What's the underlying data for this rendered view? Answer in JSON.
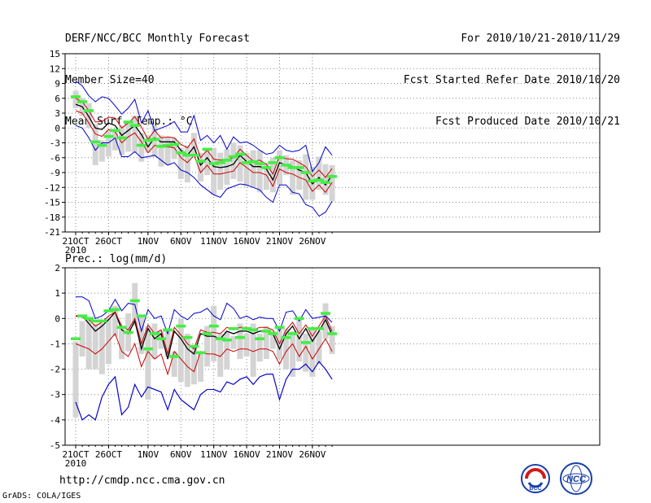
{
  "header": {
    "title": "DERF/NCC/BCC Monthly Forecast",
    "member_size": "Member Size=40",
    "variable": "Mean Surf. Temp.: °C",
    "period": "For 2010/10/21-2010/11/29",
    "started": "Fcst Started Refer Date 2010/10/20",
    "produced": "Fcst Produced Date 2010/10/21"
  },
  "footer": {
    "url": "http://cmdp.ncc.cma.gov.cn",
    "credit": "GrADS: COLA/IGES",
    "logo_left_text": "BCC",
    "logo_right_text": "NCC"
  },
  "colors": {
    "mean": "#000000",
    "spread": "#cc0000",
    "extreme": "#0000cc",
    "box": "#d4d4d4",
    "climatology": "#44ee44",
    "grid": "#888888"
  },
  "chart_data": [
    {
      "type": "line",
      "title": "Mean Surf. Temp.: °C",
      "ylim": [
        -21,
        15
      ],
      "yticks": [
        15,
        12,
        9,
        6,
        3,
        0,
        -3,
        -6,
        -9,
        -12,
        -15,
        -18,
        -21
      ],
      "xtick_labels": [
        "21OCT",
        "26OCT",
        "1NOV",
        "6NOV",
        "11NOV",
        "16NOV",
        "21NOV",
        "26NOV"
      ],
      "xtick_days": [
        1,
        6,
        12,
        17,
        22,
        27,
        32,
        37
      ],
      "year_label": "2010",
      "series": [
        {
          "name": "ensemble mean",
          "role": "mean",
          "values": [
            4.8,
            4.3,
            2.3,
            0.0,
            -0.3,
            1.0,
            0.5,
            -1.5,
            -0.5,
            0.5,
            -1.3,
            -3.8,
            -2.0,
            -2.8,
            -2.8,
            -2.8,
            -4.5,
            -5.5,
            -3.8,
            -7.5,
            -6.0,
            -7.8,
            -8.0,
            -7.8,
            -7.3,
            -5.5,
            -6.8,
            -7.8,
            -7.8,
            -8.3,
            -10.5,
            -7.0,
            -7.5,
            -7.8,
            -8.5,
            -9.0,
            -11.3,
            -10.0,
            -11.5,
            -9.5
          ]
        },
        {
          "name": "mean + sd",
          "role": "spread",
          "values": [
            6.0,
            5.3,
            3.5,
            1.2,
            1.3,
            2.2,
            2.0,
            0.0,
            1.0,
            2.3,
            0.2,
            -2.3,
            -0.5,
            -2.0,
            -1.8,
            -2.0,
            -3.3,
            -4.0,
            -2.2,
            -6.0,
            -4.5,
            -6.3,
            -6.5,
            -6.5,
            -6.0,
            -4.3,
            -5.5,
            -6.7,
            -6.5,
            -7.3,
            -9.3,
            -5.7,
            -6.2,
            -6.3,
            -7.0,
            -7.8,
            -9.8,
            -8.5,
            -10.0,
            -8.2
          ]
        },
        {
          "name": "mean - sd",
          "role": "spread",
          "values": [
            3.5,
            3.0,
            1.0,
            -1.2,
            -1.7,
            -0.3,
            -0.8,
            -3.0,
            -1.8,
            -1.0,
            -2.8,
            -5.0,
            -3.5,
            -3.8,
            -3.8,
            -4.0,
            -6.0,
            -7.0,
            -5.5,
            -9.0,
            -7.5,
            -9.3,
            -9.3,
            -9.0,
            -8.7,
            -7.0,
            -8.0,
            -9.0,
            -9.0,
            -9.5,
            -11.8,
            -8.3,
            -9.0,
            -9.3,
            -10.0,
            -10.5,
            -12.8,
            -11.5,
            -13.0,
            -11.0
          ]
        },
        {
          "name": "maximum",
          "role": "extreme",
          "values": [
            9.5,
            8.5,
            6.5,
            5.3,
            6.3,
            6.0,
            4.5,
            2.8,
            4.0,
            5.8,
            1.0,
            3.5,
            -0.5,
            0.0,
            0.5,
            1.3,
            -0.8,
            -0.8,
            2.5,
            -2.5,
            -1.5,
            -3.0,
            -1.5,
            -4.3,
            -1.8,
            -3.0,
            -2.8,
            -3.5,
            -4.5,
            -5.3,
            -5.0,
            -3.5,
            -4.5,
            -4.8,
            -4.5,
            -3.5,
            -8.8,
            -7.0,
            -3.8,
            -5.5
          ]
        },
        {
          "name": "minimum",
          "role": "extreme",
          "values": [
            0.5,
            0.0,
            -2.0,
            -4.5,
            -3.0,
            -3.0,
            -2.0,
            -5.8,
            -5.8,
            -4.8,
            -6.0,
            -5.8,
            -5.5,
            -6.5,
            -7.5,
            -7.0,
            -8.5,
            -9.0,
            -10.0,
            -11.5,
            -12.5,
            -13.5,
            -14.0,
            -12.3,
            -11.8,
            -11.3,
            -11.5,
            -12.0,
            -12.5,
            -14.0,
            -15.0,
            -11.5,
            -11.5,
            -13.0,
            -13.3,
            -15.5,
            -16.0,
            -17.8,
            -17.0,
            -14.8
          ]
        }
      ],
      "boxes": [
        [
          7.5,
          4.0
        ],
        [
          6.0,
          2.5
        ],
        [
          5.0,
          0.0
        ],
        [
          0.8,
          -7.5
        ],
        [
          -2.5,
          -6.8
        ],
        [
          -0.5,
          -5.8
        ],
        [
          -0.5,
          -4.5
        ],
        [
          0.5,
          -5.5
        ],
        [
          1.0,
          -4.8
        ],
        [
          2.5,
          -5.0
        ],
        [
          -1.0,
          -6.8
        ],
        [
          -1.5,
          -5.0
        ],
        [
          0.5,
          -5.8
        ],
        [
          -1.5,
          -7.8
        ],
        [
          -1.8,
          -7.5
        ],
        [
          -2.0,
          -6.3
        ],
        [
          -4.0,
          -10.3
        ],
        [
          -3.5,
          -11.0
        ],
        [
          -1.0,
          -5.8
        ],
        [
          -5.0,
          -10.8
        ],
        [
          -4.0,
          -9.5
        ],
        [
          -4.0,
          -13.5
        ],
        [
          -5.0,
          -12.5
        ],
        [
          -4.3,
          -11.5
        ],
        [
          -3.0,
          -10.3
        ],
        [
          -3.5,
          -10.8
        ],
        [
          -5.0,
          -11.8
        ],
        [
          -4.5,
          -12.0
        ],
        [
          -4.5,
          -13.0
        ],
        [
          -7.0,
          -12.5
        ],
        [
          -6.0,
          -13.0
        ],
        [
          -4.5,
          -11.5
        ],
        [
          -5.5,
          -9.5
        ],
        [
          -6.5,
          -13.5
        ],
        [
          -6.5,
          -12.5
        ],
        [
          -5.3,
          -14.5
        ],
        [
          -7.8,
          -14.5
        ],
        [
          -5.8,
          -12.5
        ],
        [
          -7.3,
          -13.5
        ],
        [
          -7.5,
          -14.8
        ]
      ],
      "climatology": [
        6.3,
        5.3,
        3.5,
        -2.8,
        -3.5,
        -1.7,
        -0.5,
        -2.0,
        1.2,
        0.5,
        -3.5,
        -2.5,
        -2.3,
        -3.7,
        -3.5,
        -3.3,
        -5.0,
        -5.5,
        -5.5,
        -6.7,
        -4.3,
        -7.2,
        -7.0,
        -6.5,
        -5.8,
        -5.3,
        -7.0,
        -6.8,
        -7.2,
        -8.0,
        -7.0,
        -6.0,
        -7.5,
        -8.0,
        -8.0,
        -9.0,
        -10.7,
        -10.5,
        -11.0,
        -9.8
      ]
    },
    {
      "type": "line",
      "title": "Prec.: log(mm/d)",
      "ylim": [
        -5,
        2
      ],
      "yticks": [
        2,
        1,
        0,
        -1,
        -2,
        -3,
        -4,
        -5
      ],
      "xtick_labels": [
        "21OCT",
        "26OCT",
        "1NOV",
        "6NOV",
        "11NOV",
        "16NOV",
        "21NOV",
        "26NOV"
      ],
      "xtick_days": [
        1,
        6,
        12,
        17,
        22,
        27,
        32,
        37
      ],
      "year_label": "2010",
      "series": [
        {
          "name": "ensemble mean",
          "role": "mean",
          "values": [
            0.1,
            0.1,
            -0.2,
            -0.5,
            -0.3,
            -0.05,
            0.25,
            -0.45,
            -0.6,
            -0.1,
            -1.2,
            -0.4,
            -0.8,
            -0.6,
            -1.6,
            -0.5,
            -0.8,
            -1.2,
            -1.4,
            -0.6,
            -0.7,
            -0.7,
            -0.8,
            -0.5,
            -0.6,
            -0.5,
            -0.5,
            -0.6,
            -0.5,
            -0.5,
            -0.6,
            -1.2,
            -0.6,
            -0.3,
            -0.8,
            -0.4,
            -0.9,
            -0.5,
            -0.05,
            -0.65
          ]
        },
        {
          "name": "mean + sd",
          "role": "spread",
          "values": [
            0.1,
            0.05,
            -0.05,
            -0.3,
            -0.15,
            0.1,
            0.25,
            -0.3,
            -0.45,
            0.0,
            -1.0,
            -0.25,
            -0.6,
            -0.45,
            -1.4,
            -0.35,
            -0.65,
            -1.0,
            -1.2,
            -0.45,
            -0.55,
            -0.55,
            -0.6,
            -0.35,
            -0.45,
            -0.35,
            -0.35,
            -0.45,
            -0.35,
            -0.35,
            -0.45,
            -1.0,
            -0.45,
            -0.15,
            -0.6,
            -0.25,
            -0.7,
            -0.3,
            0.1,
            -0.5
          ]
        },
        {
          "name": "mean - sd",
          "role": "spread",
          "values": [
            -1.0,
            -1.1,
            -1.2,
            -1.4,
            -1.2,
            -0.9,
            -0.6,
            -1.3,
            -1.5,
            -1.0,
            -1.9,
            -1.3,
            -1.6,
            -1.4,
            -2.2,
            -1.3,
            -1.6,
            -1.9,
            -2.1,
            -1.3,
            -1.4,
            -1.4,
            -1.5,
            -1.2,
            -1.3,
            -1.2,
            -1.2,
            -1.3,
            -1.2,
            -1.2,
            -1.3,
            -1.8,
            -1.3,
            -1.0,
            -1.5,
            -1.1,
            -1.6,
            -1.2,
            -0.8,
            -1.3
          ]
        },
        {
          "name": "maximum",
          "role": "extreme",
          "values": [
            0.85,
            0.85,
            0.7,
            0.0,
            0.1,
            0.3,
            0.75,
            0.3,
            0.6,
            0.55,
            -0.5,
            0.35,
            0.0,
            0.1,
            -0.6,
            0.35,
            0.1,
            -0.05,
            0.2,
            0.25,
            0.4,
            0.1,
            -0.05,
            0.6,
            0.4,
            0.0,
            0.1,
            -0.05,
            0.05,
            0.0,
            0.0,
            -0.5,
            0.25,
            0.3,
            -0.1,
            0.35,
            0.0,
            0.05,
            0.1,
            -0.15
          ]
        },
        {
          "name": "minimum",
          "role": "extreme",
          "values": [
            -3.3,
            -4.0,
            -3.8,
            -4.0,
            -3.1,
            -2.6,
            -2.3,
            -3.8,
            -3.5,
            -2.6,
            -3.1,
            -2.7,
            -2.8,
            -2.9,
            -3.6,
            -2.8,
            -3.2,
            -3.4,
            -3.6,
            -3.0,
            -2.8,
            -2.8,
            -2.9,
            -2.5,
            -2.6,
            -2.4,
            -2.3,
            -2.6,
            -2.3,
            -2.2,
            -2.2,
            -3.2,
            -2.4,
            -2.0,
            -2.0,
            -1.8,
            -2.1,
            -1.7,
            -2.0,
            -2.4
          ]
        },
        {
          "name": "minimum (lower member)",
          "role": "extreme",
          "values": [
            -3.3,
            -4.0,
            -3.8,
            -4.0,
            -3.1,
            -2.6,
            -2.3,
            -3.8,
            -3.5,
            -2.6,
            -3.1,
            -2.7,
            -2.8,
            -2.9,
            -3.6,
            -2.8,
            -3.2,
            -3.4,
            -3.6,
            -3.0,
            -2.8,
            -2.8,
            -2.9,
            -2.5,
            -2.6,
            -2.4,
            -2.3,
            -2.6,
            -2.3,
            -2.2,
            -2.2,
            -3.2,
            -2.4,
            -2.0,
            -2.0,
            -1.8,
            -2.1,
            -1.7,
            -2.0,
            -2.4
          ]
        }
      ],
      "boxes": [
        [
          -0.9,
          -3.9
        ],
        [
          -0.1,
          -1.5
        ],
        [
          0.0,
          -2.0
        ],
        [
          -0.2,
          -2.0
        ],
        [
          -0.2,
          -2.2
        ],
        [
          0.0,
          -1.8
        ],
        [
          0.5,
          -0.7
        ],
        [
          -0.4,
          -1.6
        ],
        [
          0.2,
          -1.3
        ],
        [
          1.4,
          -0.3
        ],
        [
          0.1,
          -1.4
        ],
        [
          -0.3,
          -3.2
        ],
        [
          -0.2,
          -1.6
        ],
        [
          -0.5,
          -1.2
        ],
        [
          -0.5,
          -1.5
        ],
        [
          -1.3,
          -2.3
        ],
        [
          0.0,
          -2.5
        ],
        [
          -0.6,
          -2.7
        ],
        [
          -1.1,
          -2.6
        ],
        [
          -1.3,
          -2.5
        ],
        [
          -0.3,
          -1.9
        ],
        [
          0.5,
          -1.7
        ],
        [
          -0.6,
          -2.3
        ],
        [
          -0.5,
          -2.0
        ],
        [
          -0.7,
          -1.2
        ],
        [
          -0.2,
          -1.6
        ],
        [
          -0.6,
          -1.5
        ],
        [
          -0.2,
          -2.3
        ],
        [
          -0.6,
          -1.7
        ],
        [
          -0.3,
          -1.6
        ],
        [
          -0.5,
          -1.2
        ],
        [
          -0.4,
          -1.6
        ],
        [
          -0.4,
          -2.0
        ],
        [
          -0.5,
          -2.3
        ],
        [
          0.0,
          -1.7
        ],
        [
          -0.6,
          -2.1
        ],
        [
          -0.4,
          -2.3
        ],
        [
          -0.5,
          -1.8
        ],
        [
          0.6,
          -0.8
        ],
        [
          -0.3,
          -1.4
        ]
      ],
      "climatology": [
        -0.8,
        0.1,
        0.0,
        -0.1,
        -0.1,
        0.3,
        0.35,
        -0.35,
        -0.55,
        0.7,
        0.1,
        -1.2,
        -0.6,
        -0.8,
        -0.45,
        -1.5,
        -0.3,
        -0.75,
        -1.1,
        -1.35,
        -0.6,
        -0.3,
        -0.8,
        -0.85,
        -0.4,
        -0.75,
        -0.4,
        -0.45,
        -0.8,
        -0.5,
        -0.6,
        -0.35,
        -0.75,
        -0.6,
        0.0,
        -0.95,
        -0.4,
        -0.4,
        0.2,
        -0.6
      ]
    }
  ]
}
